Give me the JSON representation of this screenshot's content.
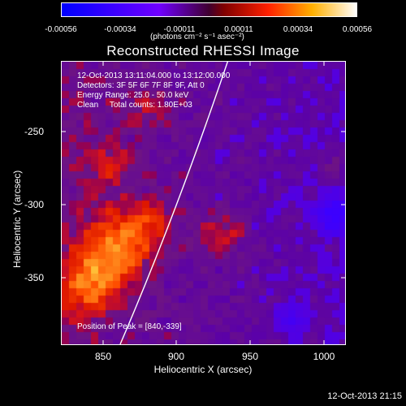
{
  "colorbar": {
    "ticks": [
      "-0.00056",
      "-0.00034",
      "-0.00011",
      "0.00011",
      "0.00034",
      "0.00056"
    ],
    "units": "(photons cm⁻² s⁻¹ asec⁻²)"
  },
  "title": "Reconstructed RHESSI Image",
  "info": {
    "time_range": "12-Oct-2013 13:11:04.000 to 13:12:00.000",
    "detectors": "Detectors: 3F 5F 6F 7F 8F 9F, Att 0",
    "energy": "Energy Range: 25.0 - 50.0 keV",
    "clean": "Clean     Total counts: 1.80E+03",
    "peak": "Position of Peak = [840,-339]"
  },
  "axes": {
    "xlabel": "Heliocentric X (arcsec)",
    "ylabel": "Heliocentric Y (arcsec)",
    "xticks": [
      "850",
      "900",
      "950",
      "1000"
    ],
    "yticks": [
      "-250",
      "-300",
      "-350"
    ]
  },
  "footer_date": "12-Oct-2013 21:15"
}
